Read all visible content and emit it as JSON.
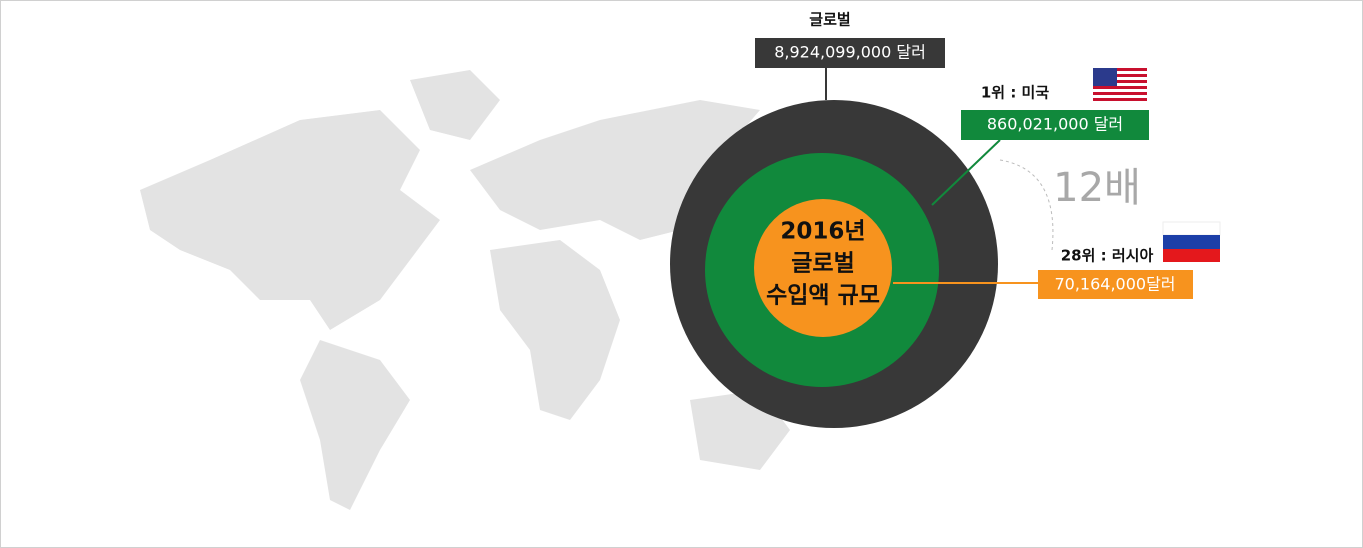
{
  "global": {
    "label": "글로벌",
    "value": "8,924,099,000 달러"
  },
  "rank1": {
    "label": "1위 : 미국",
    "value": "860,021,000 달러"
  },
  "ratio": "12배",
  "rank28": {
    "label": "28위 : 러시아",
    "value": "70,164,000달러"
  },
  "center": [
    "2016년",
    "글로벌",
    "수입액 규모"
  ]
}
